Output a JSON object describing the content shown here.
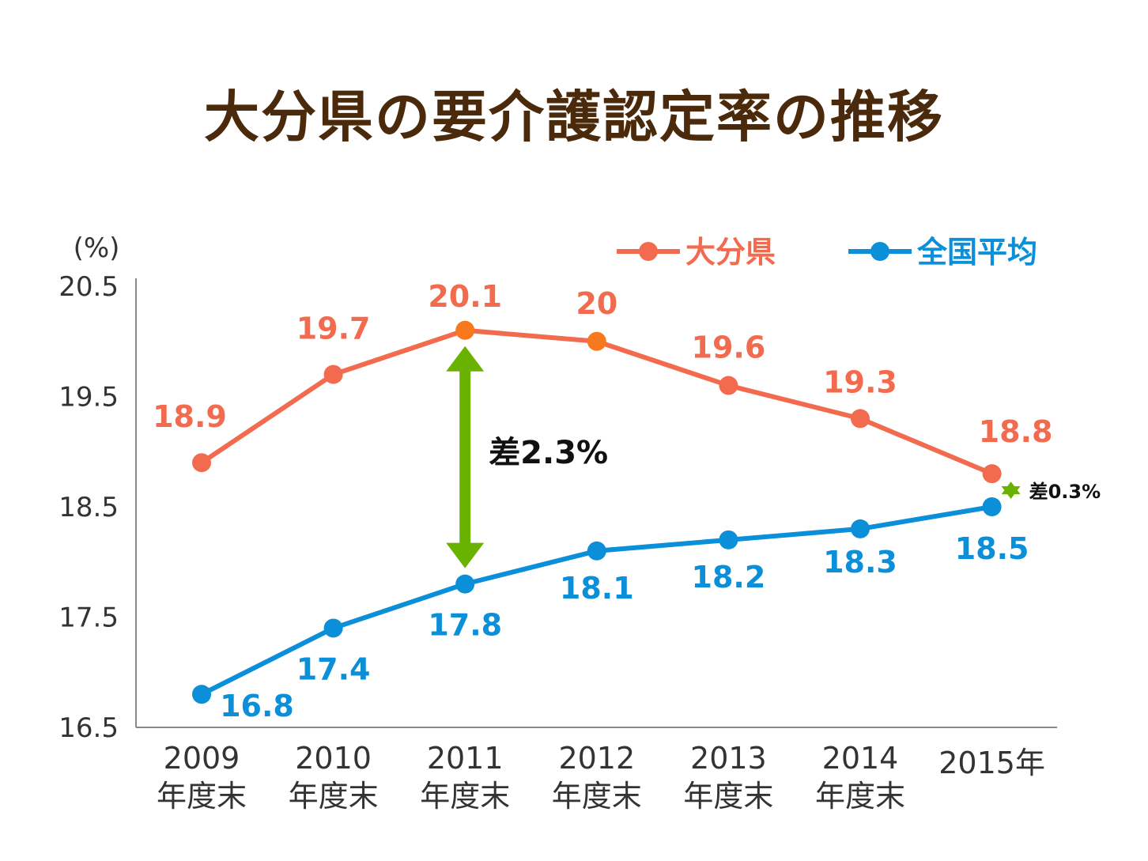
{
  "title": "大分県の要介護認定率の推移",
  "chart_data": {
    "type": "line",
    "title": "大分県の要介護認定率の推移",
    "ylabel": "(%)",
    "xlabel": "",
    "categories": [
      "2009\n年度末",
      "2010\n年度末",
      "2011\n年度末",
      "2012\n年度末",
      "2013\n年度末",
      "2014\n年度末",
      "2015年"
    ],
    "yticks": [
      "20.5",
      "19.5",
      "18.5",
      "17.5",
      "16.5"
    ],
    "ylim": [
      16.5,
      20.5
    ],
    "grid": false,
    "legend_position": "top-right",
    "series": [
      {
        "name": "大分県",
        "color": "#f26b4f",
        "label_color": "#f26b4f",
        "values": [
          18.9,
          19.7,
          20.1,
          20.0,
          19.6,
          19.3,
          18.8
        ],
        "value_labels": [
          "18.9",
          "19.7",
          "20.1",
          "20",
          "19.6",
          "19.3",
          "18.8"
        ]
      },
      {
        "name": "全国平均",
        "color": "#0a8fd8",
        "label_color": "#0a8fd8",
        "values": [
          16.8,
          17.4,
          17.8,
          18.1,
          18.2,
          18.3,
          18.5
        ],
        "value_labels": [
          "16.8",
          "17.4",
          "17.8",
          "18.1",
          "18.2",
          "18.3",
          "18.5"
        ]
      }
    ],
    "annotations": [
      {
        "text": "差2.3%",
        "category_index": 2,
        "from": 20.1,
        "to": 17.8,
        "color": "#6ab200"
      },
      {
        "text": "差0.3%",
        "category_index": 6,
        "from": 18.8,
        "to": 18.5,
        "color": "#6ab200"
      }
    ],
    "marker_colors": {
      "highlight": "#f7781d"
    }
  }
}
